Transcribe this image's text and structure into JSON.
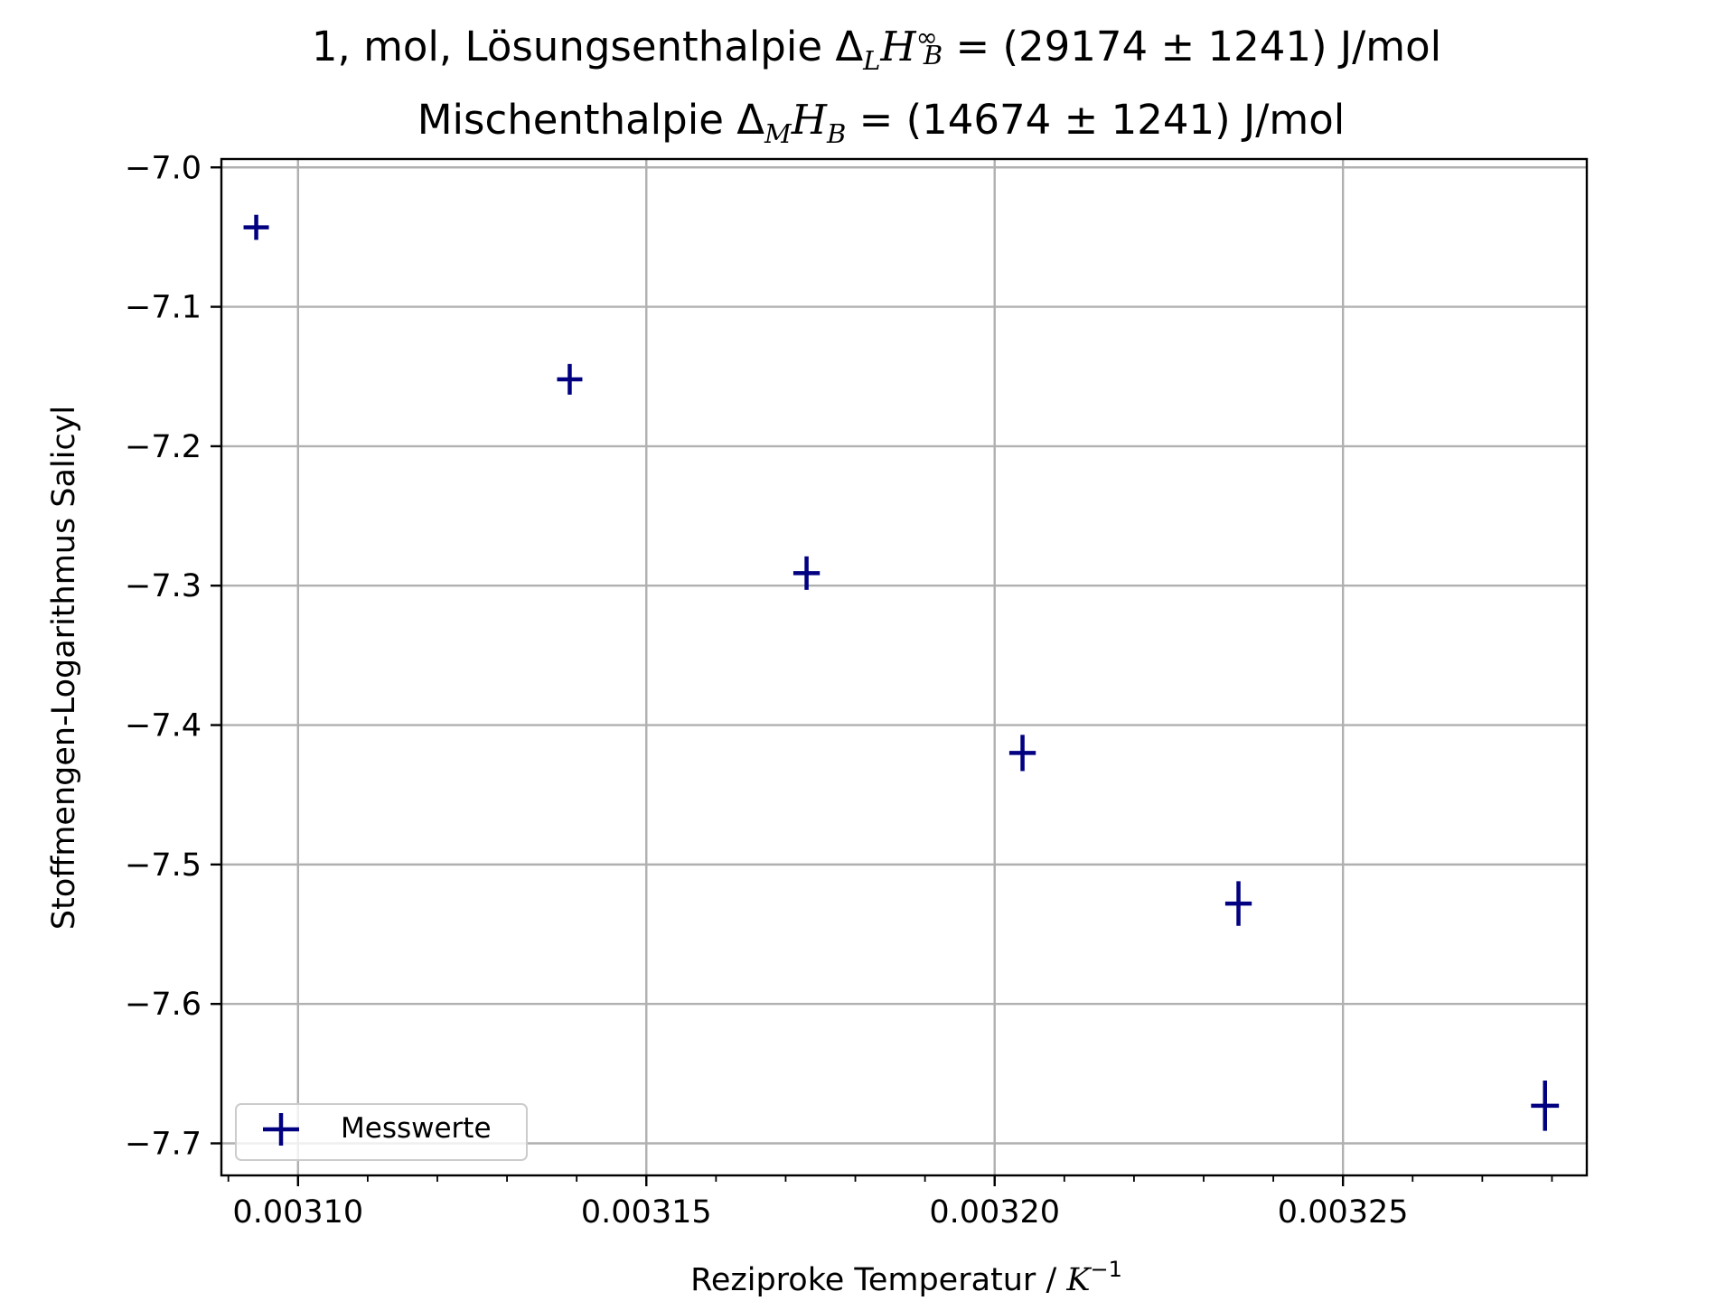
{
  "chart_data": {
    "type": "scatter",
    "title": {
      "line1": {
        "prefix": "1, mol, Lösungsenthalpie Δ",
        "sub1": "L",
        "main": "H",
        "sup": "∞",
        "sub2": "B",
        "suffix": " = (29174 ± 1241) J/mol"
      },
      "line2": {
        "prefix": "Mischenthalpie Δ",
        "sub1": "M",
        "main": "H",
        "sub2": "B",
        "suffix": " =  (14674 ± 1241) J/mol"
      }
    },
    "xlabel": {
      "prefix": "Reziproke Temperatur / ",
      "unit": "K",
      "exponent": "−1"
    },
    "ylabel": "Stoffmengen-Logarithmus Salicyl",
    "xlim": [
      0.003089,
      0.003285
    ],
    "ylim": [
      -7.723,
      -6.994
    ],
    "x_ticks": [
      {
        "value": 0.0031,
        "label": "0.00310"
      },
      {
        "value": 0.00315,
        "label": "0.00315"
      },
      {
        "value": 0.0032,
        "label": "0.00320"
      },
      {
        "value": 0.00325,
        "label": "0.00325"
      }
    ],
    "x_minor_ticks": [
      0.00309,
      0.0031,
      0.00311,
      0.00312,
      0.00313,
      0.00314,
      0.00315,
      0.00316,
      0.00317,
      0.00318,
      0.00319,
      0.0032,
      0.00321,
      0.00322,
      0.00323,
      0.00324,
      0.00325,
      0.00326,
      0.00327,
      0.00328
    ],
    "y_ticks": [
      {
        "value": -7.0,
        "label": "−7.0"
      },
      {
        "value": -7.1,
        "label": "−7.1"
      },
      {
        "value": -7.2,
        "label": "−7.2"
      },
      {
        "value": -7.3,
        "label": "−7.3"
      },
      {
        "value": -7.4,
        "label": "−7.4"
      },
      {
        "value": -7.5,
        "label": "−7.5"
      },
      {
        "value": -7.6,
        "label": "−7.6"
      },
      {
        "value": -7.7,
        "label": "−7.7"
      }
    ],
    "grid": true,
    "legend_position": "lower-left",
    "series": [
      {
        "name": "Messwerte",
        "color": "#000080",
        "marker": "errorbar-cross",
        "x": [
          0.003094,
          0.003139,
          0.003173,
          0.003204,
          0.003235,
          0.003279
        ],
        "y": [
          -7.043,
          -7.152,
          -7.291,
          -7.42,
          -7.528,
          -7.673
        ],
        "x_err": [
          1.8e-06,
          1.8e-06,
          1.9e-06,
          1.9e-06,
          1.9e-06,
          2e-06
        ],
        "y_err": [
          0.009,
          0.011,
          0.012,
          0.013,
          0.016,
          0.018
        ]
      }
    ]
  }
}
